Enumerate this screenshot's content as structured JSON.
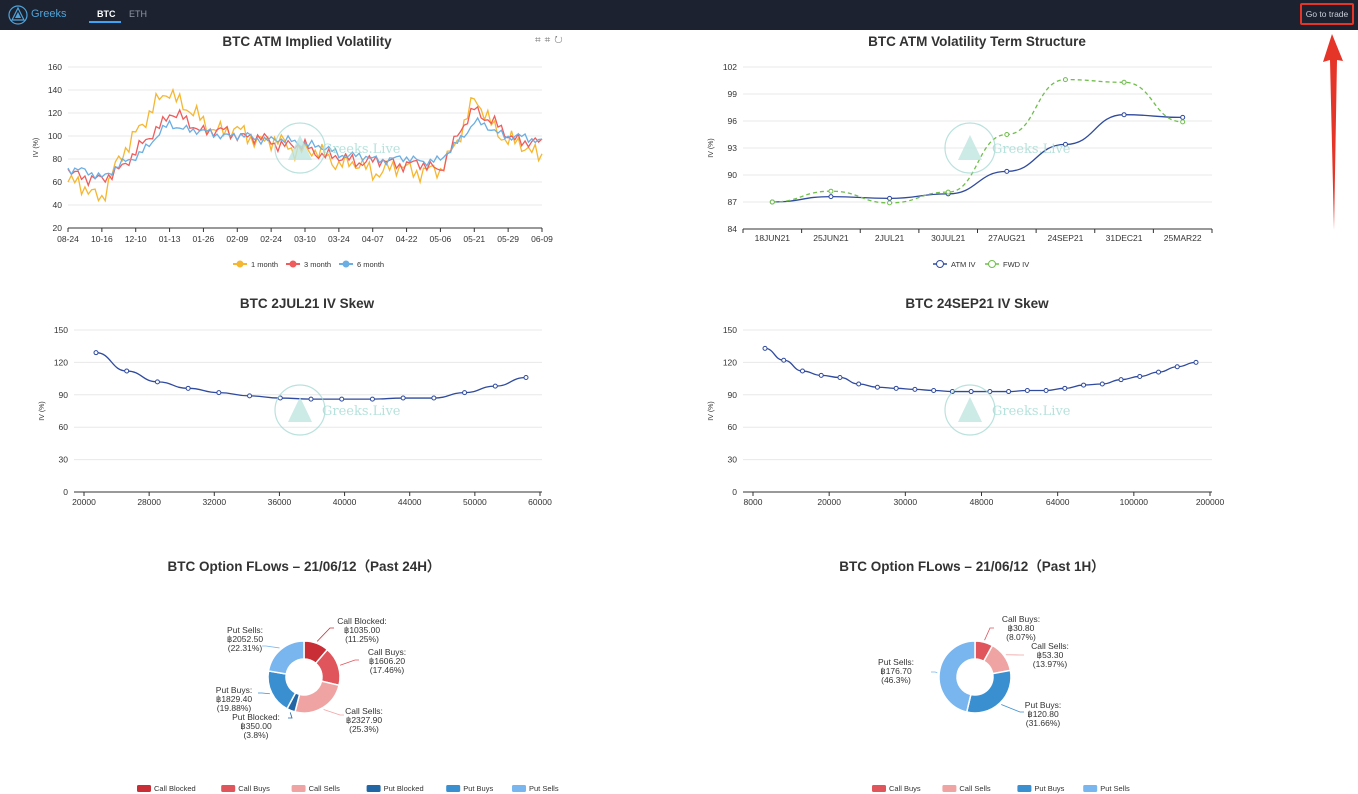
{
  "topbar": {
    "brand": "Greeks",
    "tabs": [
      {
        "label": "BTC",
        "active": true
      },
      {
        "label": "ETH",
        "active": false
      }
    ],
    "trade_button": "Go to trade"
  },
  "watermark": "Greeks.Live",
  "toolbox_icons": [
    "zoom-icon",
    "zoom-reset-icon",
    "restore-icon"
  ],
  "colors": {
    "one_month": "#f5b731",
    "three_month": "#ee5c5c",
    "six_month": "#6baee3",
    "atm": "#2f4a9e",
    "fwd": "#6fbf4b",
    "skew": "#2f4a9e",
    "call_blocked": "#c92d35",
    "call_buys": "#e0545b",
    "call_sells": "#f0a3a3",
    "put_blocked": "#2366a6",
    "put_buys": "#3a8fd1",
    "put_sells": "#79b5ee"
  },
  "chart_data": [
    {
      "type": "line",
      "title": "BTC ATM Implied Volatility",
      "ylabel": "IV (%)",
      "ylim": [
        20,
        160
      ],
      "yticks": [
        "20",
        "40",
        "60",
        "80",
        "100",
        "120",
        "140",
        "160"
      ],
      "x": [
        "08-24",
        "10-16",
        "12-10",
        "01-13",
        "01-26",
        "02-09",
        "02-24",
        "03-10",
        "03-24",
        "04-07",
        "04-22",
        "05-06",
        "05-21",
        "05-29",
        "06-09"
      ],
      "series": [
        {
          "name": "1 month",
          "values": [
            60,
            48,
            105,
            140,
            110,
            103,
            95,
            88,
            78,
            70,
            72,
            68,
            130,
            95,
            85
          ]
        },
        {
          "name": "3 month",
          "values": [
            70,
            60,
            85,
            120,
            105,
            102,
            95,
            90,
            80,
            78,
            76,
            72,
            125,
            100,
            92
          ]
        },
        {
          "name": "6 month",
          "values": [
            72,
            65,
            82,
            110,
            103,
            100,
            97,
            94,
            85,
            80,
            80,
            78,
            112,
            100,
            96
          ]
        }
      ],
      "legend_position": "bottom"
    },
    {
      "type": "line",
      "title": "BTC ATM Volatility Term Structure",
      "ylabel": "IV (%)",
      "ylim": [
        84,
        102
      ],
      "yticks": [
        "84",
        "87",
        "90",
        "93",
        "96",
        "99",
        "102"
      ],
      "categories": [
        "18JUN21",
        "25JUN21",
        "2JUL21",
        "30JUL21",
        "27AUG21",
        "24SEP21",
        "31DEC21",
        "25MAR22"
      ],
      "series": [
        {
          "name": "ATM IV",
          "values": [
            87.0,
            87.6,
            87.4,
            87.9,
            90.4,
            93.4,
            96.7,
            96.4
          ]
        },
        {
          "name": "FWD IV",
          "values": [
            87.0,
            88.2,
            86.9,
            88.1,
            94.5,
            100.6,
            100.3,
            95.9
          ]
        }
      ],
      "legend_position": "bottom"
    },
    {
      "type": "line",
      "title": "BTC 2JUL21 IV Skew",
      "ylabel": "IV (%)",
      "ylim": [
        0,
        150
      ],
      "yticks": [
        "0",
        "30",
        "60",
        "90",
        "120",
        "150"
      ],
      "xticks": [
        "20000",
        "28000",
        "32000",
        "36000",
        "40000",
        "44000",
        "50000",
        "60000"
      ],
      "series": [
        {
          "name": "",
          "values": [
            129,
            112,
            102,
            96,
            92,
            89,
            87,
            86,
            86,
            86,
            87,
            87,
            92,
            98,
            106
          ]
        }
      ]
    },
    {
      "type": "line",
      "title": "BTC 24SEP21 IV Skew",
      "ylabel": "IV (%)",
      "ylim": [
        0,
        150
      ],
      "yticks": [
        "0",
        "30",
        "60",
        "90",
        "120",
        "150"
      ],
      "xticks": [
        "8000",
        "20000",
        "30000",
        "48000",
        "64000",
        "100000",
        "200000"
      ],
      "series": [
        {
          "name": "",
          "values": [
            133,
            122,
            112,
            108,
            106,
            100,
            97,
            96,
            95,
            94,
            93,
            93,
            93,
            93,
            94,
            94,
            96,
            99,
            100,
            104,
            107,
            111,
            116,
            120
          ]
        }
      ]
    },
    {
      "type": "pie",
      "title": "BTC Option FLows – 21/06/12（Past 24H）",
      "slices": [
        {
          "name": "Call Blocked",
          "label": "Call Blocked:",
          "value": "฿1035.00",
          "pct": "(11.25%)",
          "share": 11.25
        },
        {
          "name": "Call Buys",
          "label": "Call Buys:",
          "value": "฿1606.20",
          "pct": "(17.46%)",
          "share": 17.46
        },
        {
          "name": "Call Sells",
          "label": "Call Sells:",
          "value": "฿2327.90",
          "pct": "(25.3%)",
          "share": 25.3
        },
        {
          "name": "Put Blocked",
          "label": "Put Blocked:",
          "value": "฿350.00",
          "pct": "(3.8%)",
          "share": 3.8
        },
        {
          "name": "Put Buys",
          "label": "Put Buys:",
          "value": "฿1829.40",
          "pct": "(19.88%)",
          "share": 19.88
        },
        {
          "name": "Put Sells",
          "label": "Put Sells:",
          "value": "฿2052.50",
          "pct": "(22.31%)",
          "share": 22.31
        }
      ],
      "legend": [
        "Call Blocked",
        "Call Buys",
        "Call Sells",
        "Put Blocked",
        "Put Buys",
        "Put Sells"
      ]
    },
    {
      "type": "pie",
      "title": "BTC Option FLows – 21/06/12（Past 1H）",
      "slices": [
        {
          "name": "Call Buys",
          "label": "Call Buys:",
          "value": "฿30.80",
          "pct": "(8.07%)",
          "share": 8.07
        },
        {
          "name": "Call Sells",
          "label": "Call Sells:",
          "value": "฿53.30",
          "pct": "(13.97%)",
          "share": 13.97
        },
        {
          "name": "Put Buys",
          "label": "Put Buys:",
          "value": "฿120.80",
          "pct": "(31.66%)",
          "share": 31.66
        },
        {
          "name": "Put Sells",
          "label": "Put Sells:",
          "value": "฿176.70",
          "pct": "(46.3%)",
          "share": 46.3
        }
      ],
      "legend": [
        "Call Buys",
        "Call Sells",
        "Put Buys",
        "Put Sells"
      ]
    }
  ]
}
